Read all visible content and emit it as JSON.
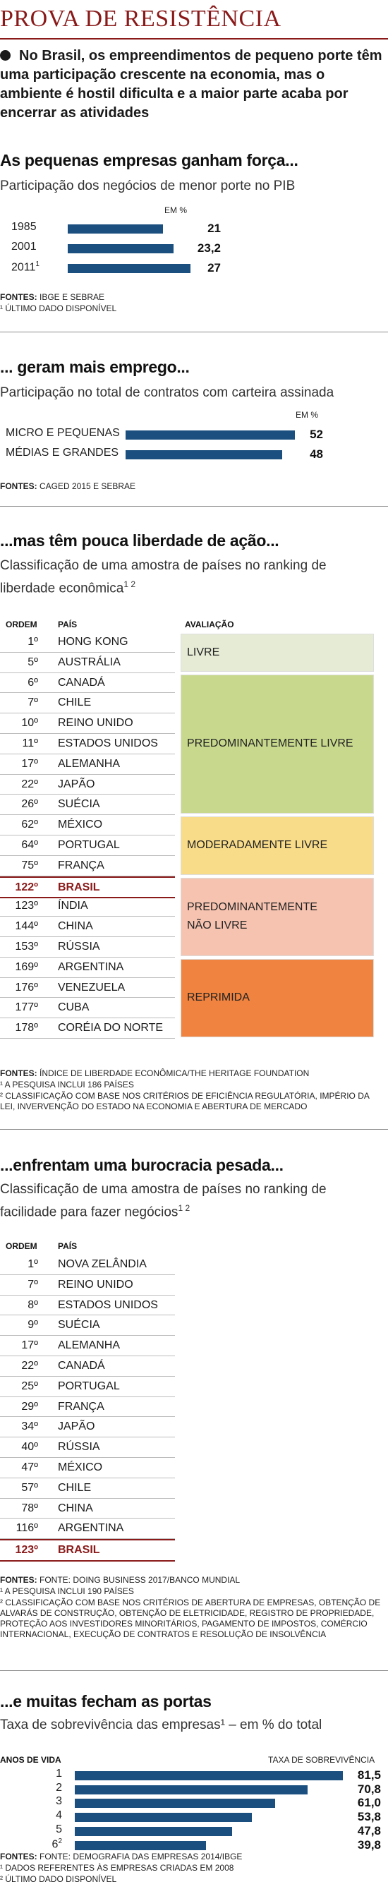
{
  "header": {
    "title": "PROVA DE RESISTÊNCIA",
    "intro": "No Brasil, os empreendimentos de pequeno porte têm uma participação crescente na economia, mas o ambiente é hostil dificulta e a maior parte acaba por encerrar as atividades"
  },
  "chart_data": [
    {
      "type": "bar",
      "title": "As pequenas empresas ganham força...",
      "subtitle": "Participação dos negócios de menor porte no PIB",
      "unit": "EM %",
      "categories": [
        "1985",
        "2001",
        "2011"
      ],
      "category_notes": [
        "",
        "",
        "1"
      ],
      "values": [
        21,
        23.2,
        27
      ],
      "value_labels": [
        "21",
        "23,2",
        "27"
      ],
      "xlim": [
        0,
        27
      ],
      "sources": "IBGE E SEBRAE",
      "notes": [
        "¹ ÚLTIMO DADO DISPONÍVEL"
      ]
    },
    {
      "type": "bar",
      "title": "... geram mais emprego...",
      "subtitle": "Participação no total de contratos com carteira assinada",
      "unit": "EM %",
      "categories": [
        "MICRO E PEQUENAS",
        "MÉDIAS E GRANDES"
      ],
      "values": [
        52,
        48
      ],
      "value_labels": [
        "52",
        "48"
      ],
      "xlim": [
        0,
        52
      ],
      "sources": "CAGED 2015 E SEBRAE"
    },
    {
      "type": "table",
      "title": "...mas têm pouca liberdade de ação...",
      "subtitle": "Classificação de uma amostra de países no ranking de liberdade econômica",
      "subtitle_sup": "1 2",
      "columns": [
        "ORDEM",
        "PAÍS",
        "AVALIAÇÃO"
      ],
      "rows": [
        {
          "rank": "1º",
          "country": "HONG KONG"
        },
        {
          "rank": "5º",
          "country": "AUSTRÁLIA"
        },
        {
          "rank": "6º",
          "country": "CANADÁ"
        },
        {
          "rank": "7º",
          "country": "CHILE"
        },
        {
          "rank": "10º",
          "country": "REINO UNIDO"
        },
        {
          "rank": "11º",
          "country": "ESTADOS UNIDOS"
        },
        {
          "rank": "17º",
          "country": "ALEMANHA"
        },
        {
          "rank": "22º",
          "country": "JAPÃO"
        },
        {
          "rank": "26º",
          "country": "SUÉCIA"
        },
        {
          "rank": "62º",
          "country": "MÉXICO"
        },
        {
          "rank": "64º",
          "country": "PORTUGAL"
        },
        {
          "rank": "75º",
          "country": "FRANÇA"
        },
        {
          "rank": "122º",
          "country": "BRASIL",
          "highlight": true
        },
        {
          "rank": "123º",
          "country": "ÍNDIA"
        },
        {
          "rank": "144º",
          "country": "CHINA"
        },
        {
          "rank": "153º",
          "country": "RÚSSIA"
        },
        {
          "rank": "169º",
          "country": "ARGENTINA"
        },
        {
          "rank": "176º",
          "country": "VENEZUELA"
        },
        {
          "rank": "177º",
          "country": "CUBA"
        },
        {
          "rank": "178º",
          "country": "CORÉIA DO NORTE"
        }
      ],
      "categories": [
        {
          "label": "LIVRE",
          "from": 0,
          "to": 1,
          "color": "#e6ebd6"
        },
        {
          "label": "PREDOMINANTEMENTE LIVRE",
          "from": 2,
          "to": 8,
          "color": "#c8d98d"
        },
        {
          "label": "MODERADAMENTE LIVRE",
          "from": 9,
          "to": 11,
          "color": "#f8dc8a"
        },
        {
          "label": "PREDOMINANTEMENTE NÃO LIVRE",
          "label_lines": [
            "PREDOMINANTEMENTE",
            "NÃO LIVRE"
          ],
          "from": 12,
          "to": 15,
          "color": "#f6c3b0"
        },
        {
          "label": "REPRIMIDA",
          "from": 16,
          "to": 19,
          "color": "#f0833f"
        }
      ],
      "sources_label": "FONTES:",
      "sources": "ÍNDICE DE LIBERDADE ECONÔMICA/THE HERITAGE FOUNDATION",
      "notes": [
        "¹ A PESQUISA INCLUI 186 PAÍSES",
        "² CLASSIFICAÇÃO COM BASE NOS CRITÉRIOS DE EFICIÊNCIA REGULATÓRIA, IMPÉRIO DA LEI, INVERVENÇÃO DO ESTADO NA ECONOMIA E ABERTURA DE MERCADO"
      ]
    },
    {
      "type": "table",
      "title": "...enfrentam uma burocracia pesada...",
      "subtitle": "Classificação de uma amostra de países no ranking de facilidade para fazer negócios",
      "subtitle_sup": "1 2",
      "columns": [
        "ORDEM",
        "PAÍS"
      ],
      "rows": [
        {
          "rank": "1º",
          "country": "NOVA ZELÂNDIA"
        },
        {
          "rank": "7º",
          "country": "REINO UNIDO"
        },
        {
          "rank": "8º",
          "country": "ESTADOS UNIDOS"
        },
        {
          "rank": "9º",
          "country": "SUÉCIA"
        },
        {
          "rank": "17º",
          "country": "ALEMANHA"
        },
        {
          "rank": "22º",
          "country": "CANADÁ"
        },
        {
          "rank": "25º",
          "country": "PORTUGAL"
        },
        {
          "rank": "29º",
          "country": "FRANÇA"
        },
        {
          "rank": "34º",
          "country": "JAPÃO"
        },
        {
          "rank": "40º",
          "country": "RÚSSIA"
        },
        {
          "rank": "47º",
          "country": "MÉXICO"
        },
        {
          "rank": "57º",
          "country": "CHILE"
        },
        {
          "rank": "78º",
          "country": "CHINA"
        },
        {
          "rank": "116º",
          "country": "ARGENTINA"
        },
        {
          "rank": "123º",
          "country": "BRASIL",
          "highlight": true
        }
      ],
      "sources_label": "FONTES:",
      "sources": "FONTE: DOING BUSINESS 2017/BANCO MUNDIAL",
      "notes": [
        "¹ A PESQUISA INCLUI 190 PAÍSES",
        "² CLASSIFICAÇÃO COM BASE NOS CRITÉRIOS DE ABERTURA DE EMPRESAS, OBTENÇÃO DE ALVARÁS DE CONSTRUÇÃO, OBTENÇÃO DE ELETRICIDADE, REGISTRO DE PROPRIEDADE, PROTEÇÃO AOS INVESTIDORES MINORITÁRIOS, PAGAMENTO DE IMPOSTOS, COMÉRCIO INTERNACIONAL, EXECUÇÃO DE CONTRATOS E RESOLUÇÃO DE INSOLVÊNCIA"
      ]
    },
    {
      "type": "bar",
      "title": "...e muitas fecham as portas",
      "subtitle": "Taxa de sobrevivência das empresas¹ – em % do total",
      "xlabel": "ANOS DE VIDA",
      "ylabel": "TAXA DE SOBREVIVÊNCIA",
      "categories": [
        "1",
        "2",
        "3",
        "4",
        "5",
        "6"
      ],
      "category_notes": [
        "",
        "",
        "",
        "",
        "",
        "2"
      ],
      "values": [
        81.5,
        70.8,
        61.0,
        53.8,
        47.8,
        39.8
      ],
      "value_labels": [
        "81,5",
        "70,8",
        "61,0",
        "53,8",
        "47,8",
        "39,8"
      ],
      "xlim": [
        0,
        81.5
      ],
      "sources_label": "FONTES:",
      "sources": "FONTE: DEMOGRAFIA DAS EMPRESAS 2014/IBGE",
      "notes": [
        "¹ DADOS REFERENTES ÀS EMPRESAS CRIADAS EM 2008",
        "² ÚLTIMO DADO DISPONÍVEL"
      ]
    }
  ]
}
